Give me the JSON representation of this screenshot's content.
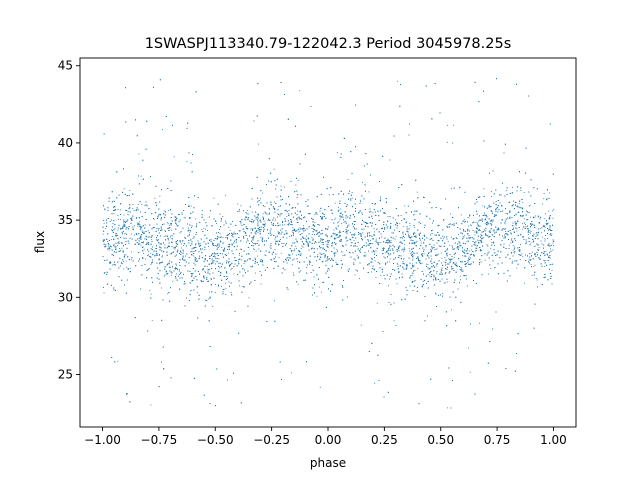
{
  "chart_data": {
    "type": "scatter",
    "title": "1SWASPJ113340.79-122042.3 Period 3045978.25s",
    "xlabel": "phase",
    "ylabel": "flux",
    "xlim": [
      -1.1,
      1.1
    ],
    "ylim": [
      21.6,
      45.5
    ],
    "x_ticks": [
      -1.0,
      -0.75,
      -0.5,
      -0.25,
      0.0,
      0.25,
      0.5,
      0.75,
      1.0
    ],
    "x_tick_labels": [
      "−1.00",
      "−0.75",
      "−0.50",
      "−0.25",
      "0.00",
      "0.25",
      "0.50",
      "0.75",
      "1.00"
    ],
    "y_ticks": [
      25,
      30,
      35,
      40,
      45
    ],
    "y_tick_labels": [
      "25",
      "30",
      "35",
      "40",
      "45"
    ],
    "grid": false,
    "marker_color": "#1f77b4",
    "series": [
      {
        "x": [
          -1.0,
          -0.95,
          -0.9,
          -0.85,
          -0.8,
          -0.75,
          -0.7,
          -0.65,
          -0.6,
          -0.55,
          -0.5,
          -0.45,
          -0.4,
          -0.35,
          -0.3,
          -0.25,
          -0.2,
          -0.15,
          -0.1,
          -0.05,
          0.0,
          0.05,
          0.1,
          0.15,
          0.2,
          0.25,
          0.3,
          0.35,
          0.4,
          0.45,
          0.5,
          0.55,
          0.6,
          0.65,
          0.7,
          0.75,
          0.8,
          0.85,
          0.9,
          0.95,
          1.0
        ],
        "y": [
          33.5,
          33.8,
          34.0,
          34.2,
          34.0,
          33.8,
          33.5,
          33.2,
          32.9,
          32.6,
          32.5,
          32.8,
          33.2,
          33.8,
          34.3,
          34.6,
          34.5,
          34.2,
          33.8,
          33.5,
          33.5,
          33.8,
          34.0,
          34.2,
          34.0,
          33.8,
          33.5,
          33.2,
          32.9,
          32.6,
          32.5,
          32.8,
          33.2,
          33.8,
          34.3,
          34.6,
          34.8,
          34.5,
          34.0,
          33.7,
          33.5
        ]
      }
    ]
  }
}
